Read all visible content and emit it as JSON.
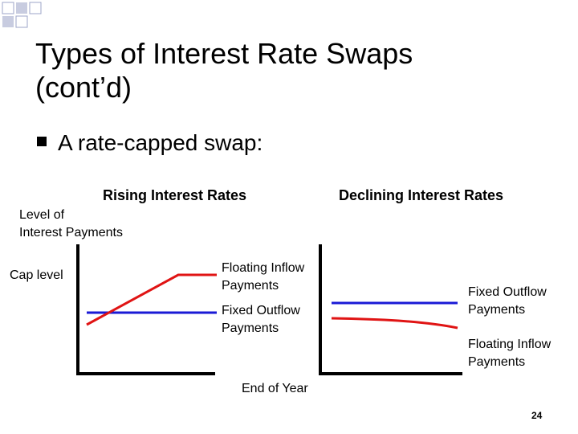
{
  "slide": {
    "title_line1": "Types of Interest Rate Swaps",
    "title_line2": "(cont’d)",
    "bullet_text": "A rate-capped swap:",
    "page_number": "24"
  },
  "diagram": {
    "header_left": "Rising Interest Rates",
    "header_right": "Declining Interest Rates",
    "y_axis_label_line1": "Level of",
    "y_axis_label_line2": "Interest Payments",
    "cap_level_label": "Cap level",
    "left_panel": {
      "floating_label_line1": "Floating Inflow",
      "floating_label_line2": "Payments",
      "fixed_label_line1": "Fixed Outflow",
      "fixed_label_line2": "Payments"
    },
    "right_panel": {
      "fixed_label_line1": "Fixed Outflow",
      "fixed_label_line2": "Payments",
      "floating_label_line1": "Floating Inflow",
      "floating_label_line2": "Payments"
    },
    "x_axis_label": "End of Year",
    "colors": {
      "fixed": "#1a1ad6",
      "floating": "#e01414",
      "axis": "#000000",
      "decor": "#c8cce0"
    }
  }
}
